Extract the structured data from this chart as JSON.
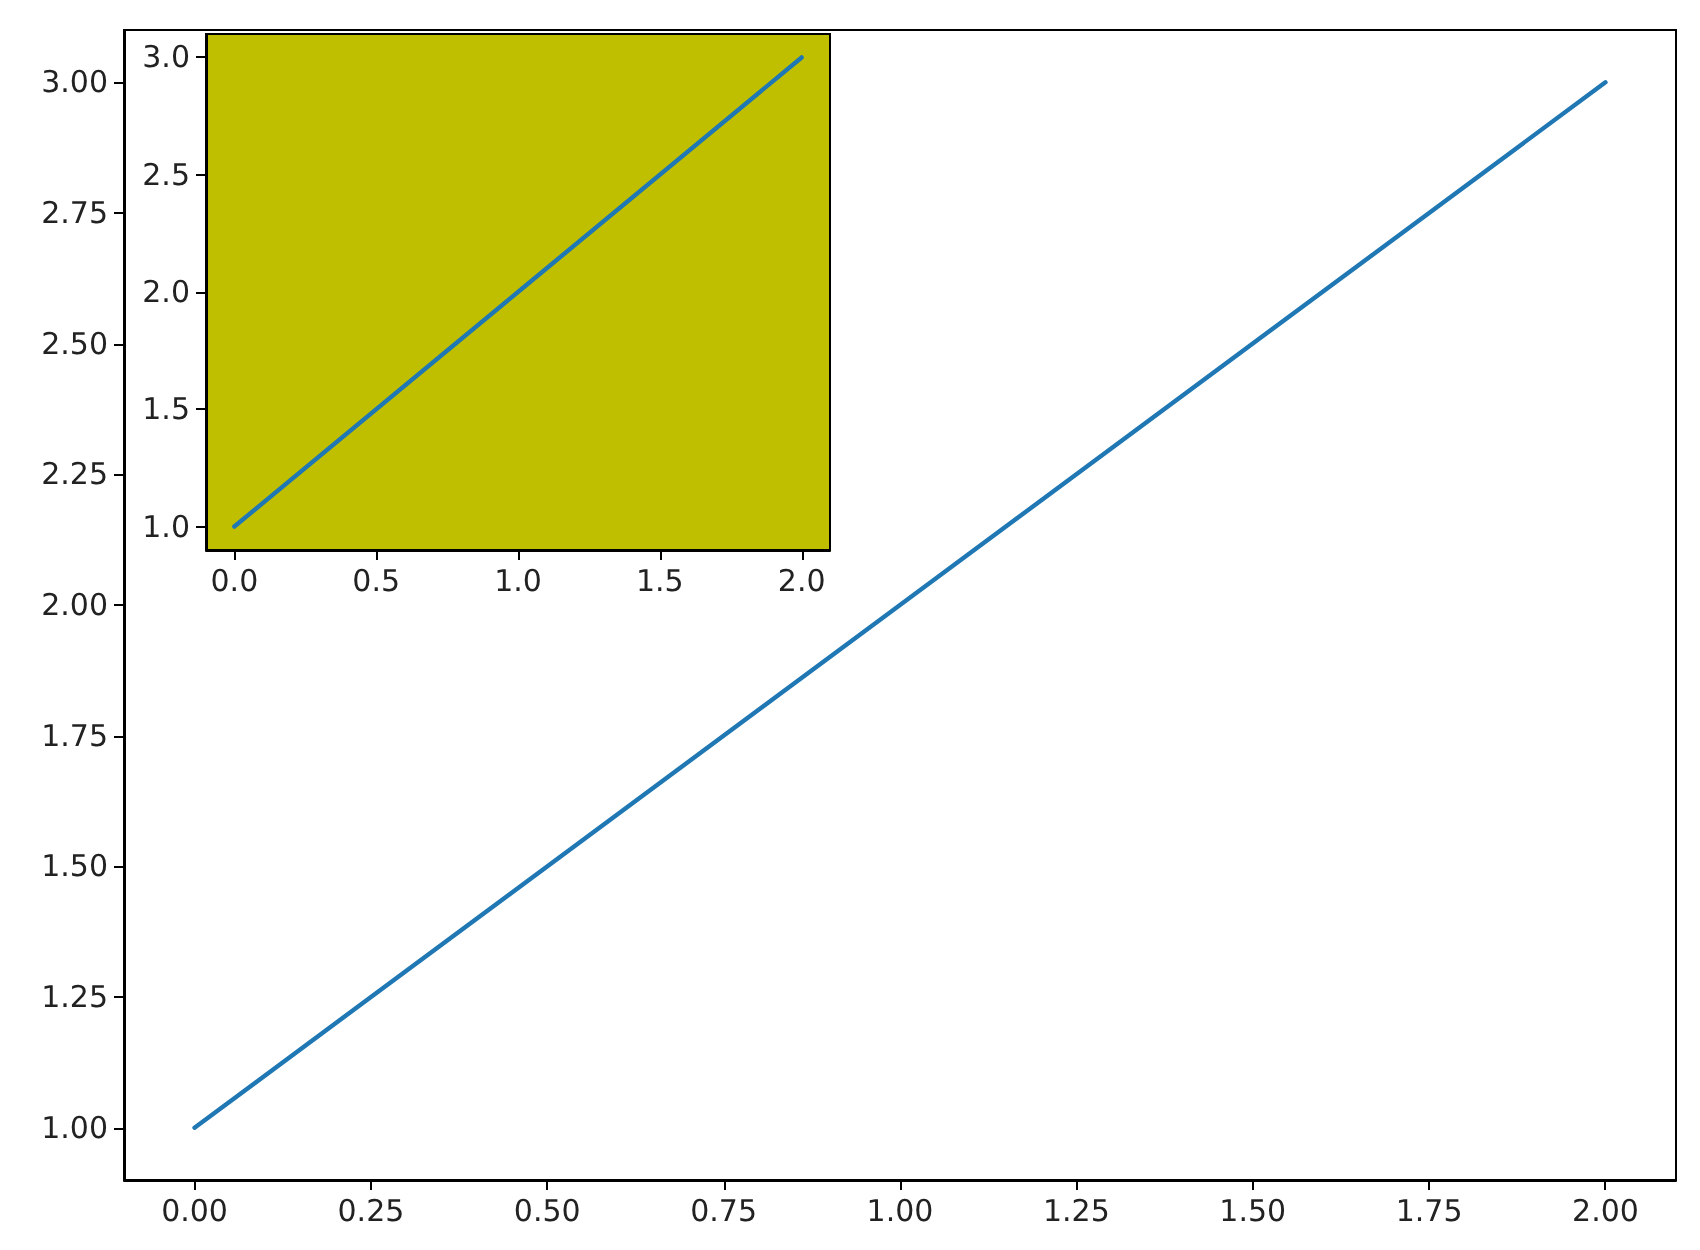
{
  "chart_data": [
    {
      "type": "line",
      "x": [
        0,
        1,
        2
      ],
      "values": [
        1,
        2,
        3
      ],
      "color": "#1f77b4",
      "xlim": [
        -0.1,
        2.1
      ],
      "ylim": [
        0.9,
        3.1
      ],
      "xticks": [
        {
          "value": 0,
          "label": "0.00"
        },
        {
          "value": 0.25,
          "label": "0.25"
        },
        {
          "value": 0.5,
          "label": "0.50"
        },
        {
          "value": 0.75,
          "label": "0.75"
        },
        {
          "value": 1,
          "label": "1.00"
        },
        {
          "value": 1.25,
          "label": "1.25"
        },
        {
          "value": 1.5,
          "label": "1.50"
        },
        {
          "value": 1.75,
          "label": "1.75"
        },
        {
          "value": 2,
          "label": "2.00"
        }
      ],
      "yticks": [
        {
          "value": 1,
          "label": "1.00"
        },
        {
          "value": 1.25,
          "label": "1.25"
        },
        {
          "value": 1.5,
          "label": "1.50"
        },
        {
          "value": 1.75,
          "label": "1.75"
        },
        {
          "value": 2,
          "label": "2.00"
        },
        {
          "value": 2.25,
          "label": "2.25"
        },
        {
          "value": 2.5,
          "label": "2.50"
        },
        {
          "value": 2.75,
          "label": "2.75"
        },
        {
          "value": 3,
          "label": "3.00"
        }
      ],
      "grid": false,
      "marker": "none",
      "line_style": "solid"
    },
    {
      "type": "line",
      "x": [
        0,
        1,
        2
      ],
      "values": [
        1,
        2,
        3
      ],
      "color": "#1f77b4",
      "xlim": [
        -0.1,
        2.1
      ],
      "ylim": [
        0.9,
        3.1
      ],
      "xticks": [
        {
          "value": 0,
          "label": "0.0"
        },
        {
          "value": 0.5,
          "label": "0.5"
        },
        {
          "value": 1,
          "label": "1.0"
        },
        {
          "value": 1.5,
          "label": "1.5"
        },
        {
          "value": 2,
          "label": "2.0"
        }
      ],
      "yticks": [
        {
          "value": 1,
          "label": "1.0"
        },
        {
          "value": 1.5,
          "label": "1.5"
        },
        {
          "value": 2,
          "label": "2.0"
        },
        {
          "value": 2.5,
          "label": "2.5"
        },
        {
          "value": 3,
          "label": "3.0"
        }
      ],
      "grid": false,
      "marker": "none",
      "line_style": "solid"
    }
  ]
}
